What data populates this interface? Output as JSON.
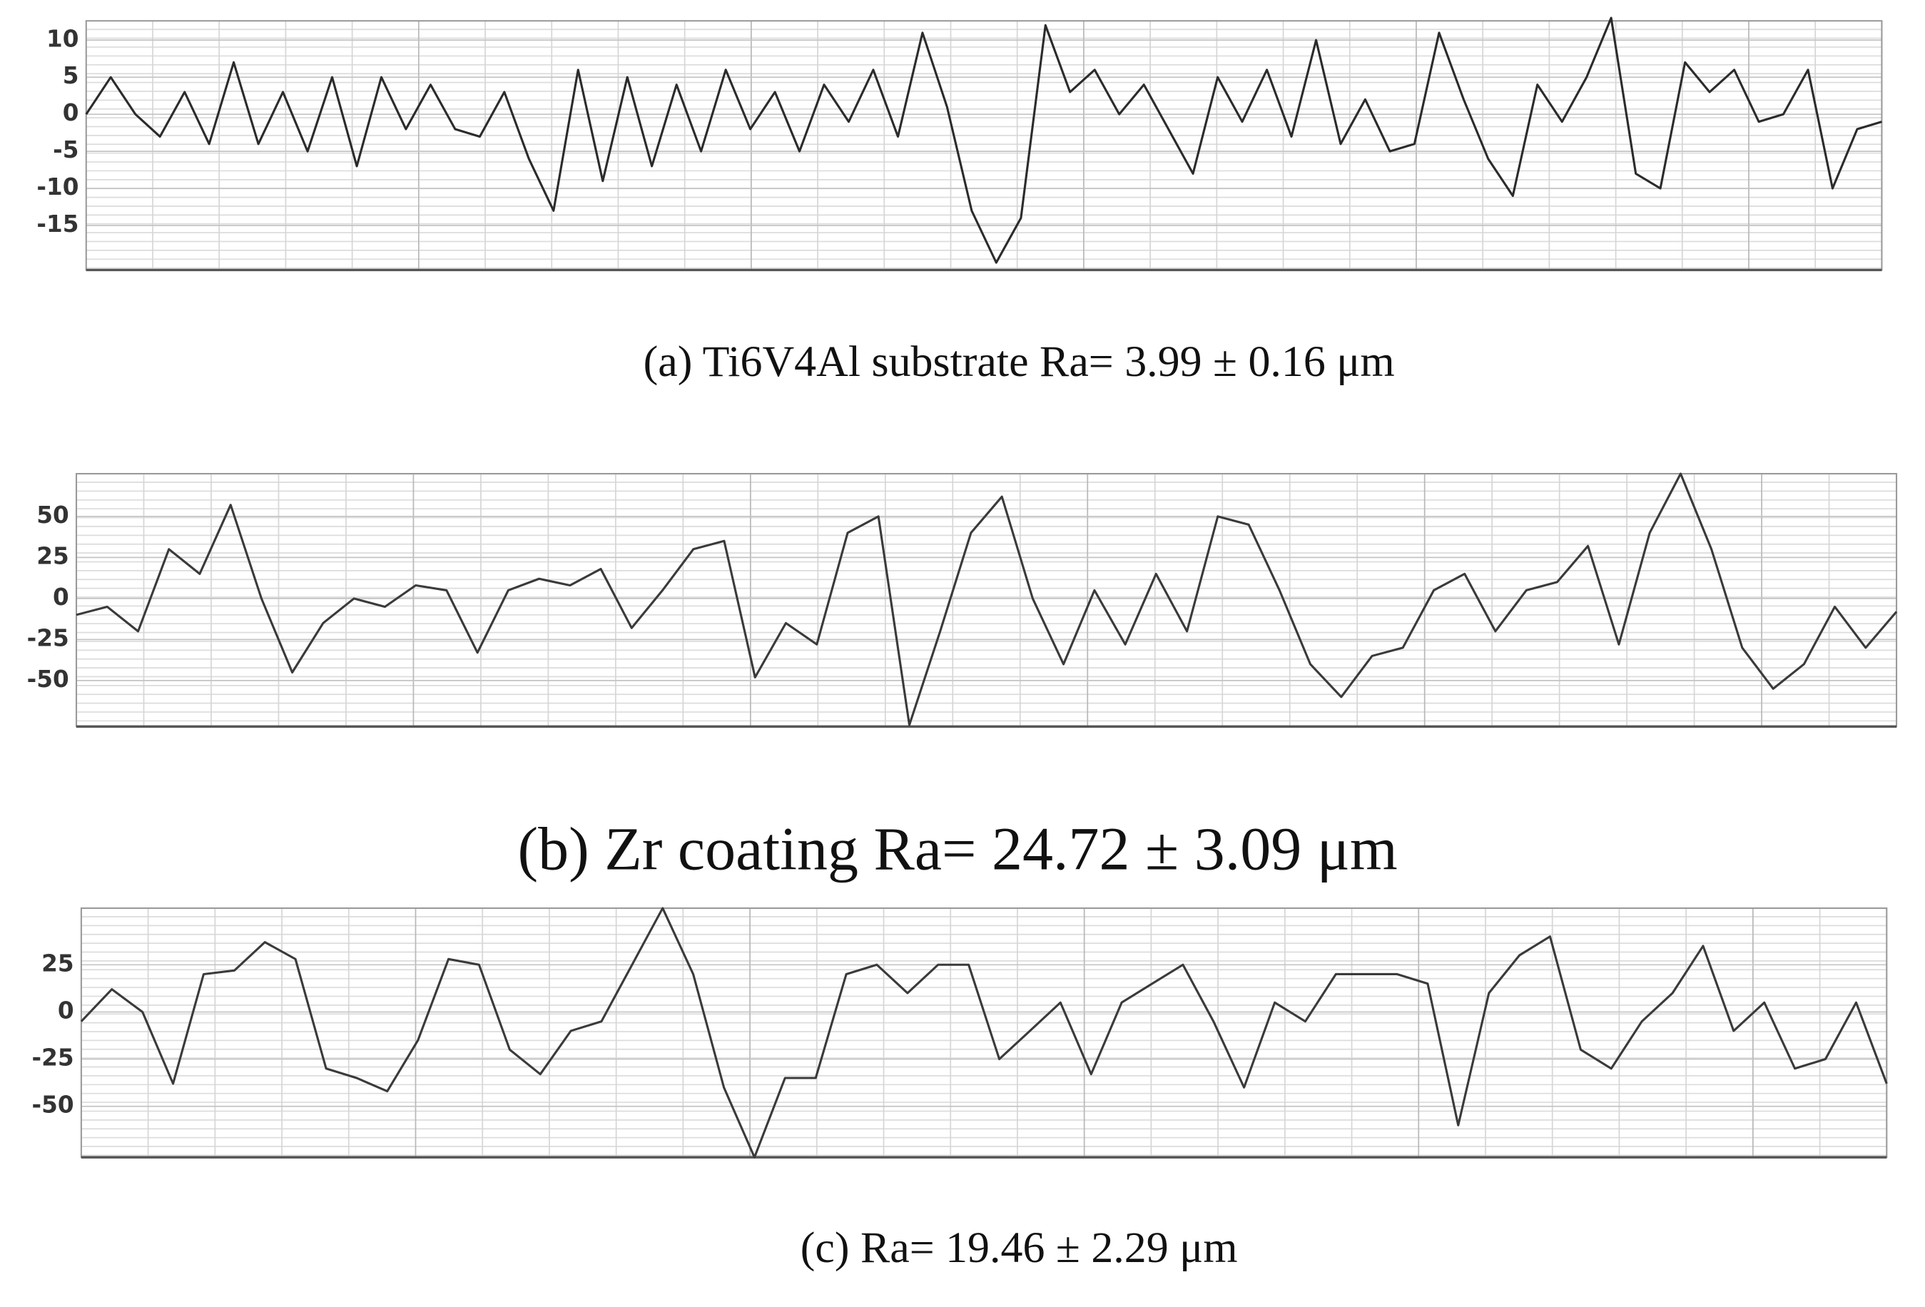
{
  "chart_data": [
    {
      "type": "line",
      "title": "(a) Ti6V4Al substrate Ra= 3.99 ± 0.16 μm",
      "color": "#2b2b2b",
      "grid": true,
      "ylim": [
        -21,
        12.6
      ],
      "yticks": [
        10,
        5,
        0,
        -5,
        -10,
        -15
      ],
      "values": [
        0,
        5,
        0,
        -3,
        3,
        -4,
        7,
        -4,
        3,
        -5,
        5,
        -7,
        5,
        -2,
        4,
        -2,
        -3,
        3,
        -6,
        -13,
        6,
        -9,
        5,
        -7,
        4,
        -5,
        6,
        -2,
        3,
        -5,
        4,
        -1,
        6,
        -3,
        11,
        1,
        -13,
        -20,
        -14,
        12,
        3,
        6,
        0,
        4,
        -2,
        -8,
        5,
        -1,
        6,
        -3,
        10,
        -4,
        2,
        -5,
        -4,
        11,
        2,
        -6,
        -11,
        4,
        -1,
        5,
        13,
        -8,
        -10,
        7,
        3,
        6,
        -1,
        0,
        6,
        -10,
        -2,
        -1
      ]
    },
    {
      "type": "line",
      "title": "(b) Zr coating Ra= 24.72 ± 3.09 μm",
      "color": "#3a3a3a",
      "grid": true,
      "ylim": [
        -78,
        76
      ],
      "yticks": [
        50,
        25,
        0,
        -25,
        -50
      ],
      "values": [
        -10,
        -5,
        -20,
        30,
        15,
        57,
        0,
        -45,
        -15,
        0,
        -5,
        8,
        5,
        -33,
        5,
        12,
        8,
        18,
        -18,
        5,
        30,
        35,
        -48,
        -15,
        -28,
        40,
        50,
        -77,
        -20,
        40,
        62,
        0,
        -40,
        5,
        -28,
        15,
        -20,
        50,
        45,
        5,
        -40,
        -60,
        -35,
        -30,
        5,
        15,
        -20,
        5,
        10,
        32,
        -28,
        40,
        76,
        30,
        -30,
        -55,
        -40,
        -5,
        -30,
        -8
      ]
    },
    {
      "type": "line",
      "title": "(c) Ra= 19.46 ± 2.29 μm",
      "color": "#3a3a3a",
      "grid": true,
      "ylim": [
        -77,
        55
      ],
      "yticks": [
        25,
        0,
        -25,
        -50
      ],
      "values": [
        -5,
        12,
        0,
        -38,
        20,
        22,
        37,
        28,
        -30,
        -35,
        -42,
        -15,
        28,
        25,
        -20,
        -33,
        -10,
        -5,
        25,
        55,
        20,
        -40,
        -77,
        -35,
        -35,
        20,
        25,
        10,
        25,
        25,
        -25,
        -10,
        5,
        -33,
        5,
        15,
        25,
        -5,
        -40,
        5,
        -5,
        20,
        20,
        20,
        15,
        -60,
        10,
        30,
        40,
        -20,
        -30,
        -5,
        10,
        35,
        -10,
        5,
        -30,
        -25,
        5,
        -38
      ]
    }
  ]
}
